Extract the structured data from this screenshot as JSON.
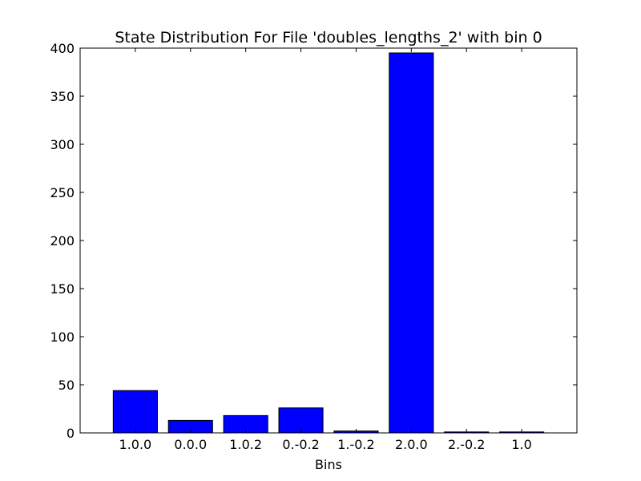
{
  "chart_data": {
    "type": "bar",
    "title": "State Distribution For File 'doubles_lengths_2' with bin 0",
    "xlabel": "Bins",
    "ylabel": "",
    "categories": [
      "1.0.0",
      "0.0.0",
      "1.0.2",
      "0.-0.2",
      "1.-0.2",
      "2.0.0",
      "2.-0.2",
      "1.0"
    ],
    "values": [
      44,
      13,
      18,
      26,
      2,
      395,
      1,
      1
    ],
    "ylim": [
      0,
      400
    ],
    "yticks": [
      0,
      50,
      100,
      150,
      200,
      250,
      300,
      350,
      400
    ],
    "grid": false,
    "legend": "none",
    "bar_color": "#0000ff",
    "edge_color": "#000000"
  }
}
